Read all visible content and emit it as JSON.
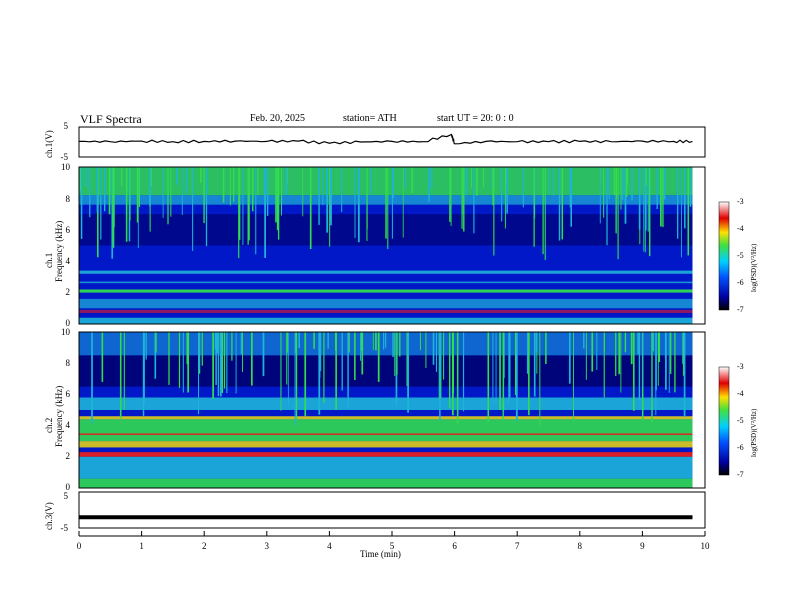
{
  "header": {
    "title": "VLF  Spectra",
    "date": "Feb. 20, 2025",
    "station": "station= ATH",
    "start": "start  UT  =    20: 0   : 0"
  },
  "chart_data": [
    {
      "type": "line",
      "panel": "ch1 waveform",
      "ylabel": "ch.1(V)",
      "yticks": [
        "5",
        "-5"
      ],
      "ylim": [
        -5,
        5
      ],
      "xlim": [
        0,
        10
      ],
      "description_values": "signal near 0 V with small fluctuations, spike near 6 min",
      "x": [
        0,
        0.5,
        1,
        1.5,
        2,
        2.5,
        3,
        3.5,
        4,
        4.5,
        5,
        5.5,
        5.95,
        6,
        6.5,
        7,
        7.5,
        8,
        8.5,
        9,
        9.5,
        9.8
      ],
      "y": [
        0.2,
        0.1,
        0.3,
        0.1,
        0.2,
        0.3,
        0.2,
        0.3,
        -0.4,
        0.0,
        0.2,
        0.1,
        2.5,
        -0.6,
        0.2,
        0.1,
        0.1,
        0.2,
        0.1,
        0.3,
        0.2,
        0.2
      ]
    },
    {
      "type": "heatmap",
      "panel": "ch1 spectrogram",
      "ylabel": "ch.1",
      "ylabel2": "Frequency  (kHz)",
      "yticks": [
        "10",
        "8",
        "6",
        "4",
        "2",
        "0"
      ],
      "ylim": [
        0,
        10
      ],
      "xlim": [
        0,
        10
      ],
      "colorbar_label": "log(PSD)(V²/Hz)",
      "colorbar_ticks": [
        "-3",
        "-4",
        "-5",
        "-6",
        "-7"
      ],
      "zlim": [
        -7,
        -3
      ]
    },
    {
      "type": "heatmap",
      "panel": "ch2 spectrogram",
      "ylabel": "ch.2",
      "ylabel2": "Frequency  (kHz)",
      "yticks": [
        "10",
        "8",
        "6",
        "4",
        "2",
        "0"
      ],
      "ylim": [
        0,
        10
      ],
      "xlim": [
        0,
        10
      ],
      "colorbar_label": "log(PSD)(V²/Hz)",
      "colorbar_ticks": [
        "-3",
        "-4",
        "-5",
        "-6",
        "-7"
      ],
      "zlim": [
        -7,
        -3
      ]
    },
    {
      "type": "line",
      "panel": "ch3 waveform",
      "ylabel": "ch.3(V)",
      "yticks": [
        "5",
        "-5"
      ],
      "ylim": [
        -5,
        5
      ],
      "xlim": [
        0,
        10
      ],
      "x": [
        0,
        9.8
      ],
      "y": [
        -2,
        -2
      ]
    }
  ],
  "xaxis": {
    "label": "Time  (min)",
    "ticks": [
      "0",
      "1",
      "2",
      "3",
      "4",
      "5",
      "6",
      "7",
      "8",
      "9",
      "10"
    ]
  },
  "colors": {
    "deep": "#000066",
    "blue": "#0018c8",
    "cyan": "#1eb4d8",
    "green": "#32dc50",
    "yellow": "#ffe600",
    "red": "#e61e1e"
  }
}
